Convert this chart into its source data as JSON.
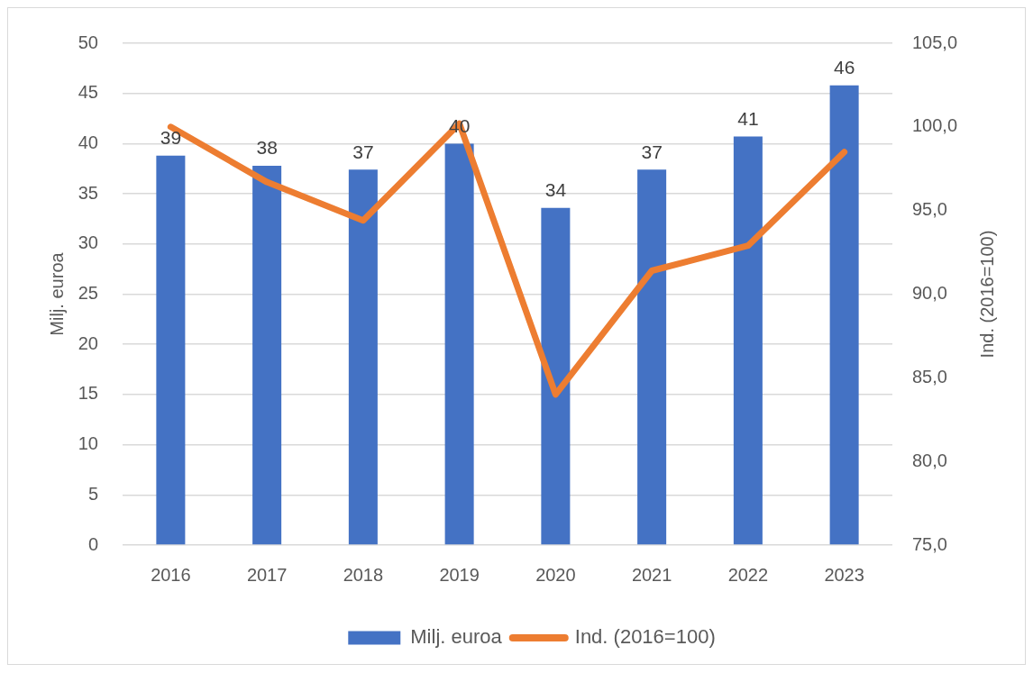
{
  "chart_data": {
    "type": "bar",
    "categories": [
      "2016",
      "2017",
      "2018",
      "2019",
      "2020",
      "2021",
      "2022",
      "2023"
    ],
    "ylabel": "Milj. euroa",
    "y2label": "Ind. (2016=100)",
    "ylim": [
      0,
      50
    ],
    "yticks": [
      0,
      5,
      10,
      15,
      20,
      25,
      30,
      35,
      40,
      45,
      50
    ],
    "y2lim": [
      75,
      105
    ],
    "y2ticks": [
      {
        "value": 75,
        "label": "75,0"
      },
      {
        "value": 80,
        "label": "80,0"
      },
      {
        "value": 85,
        "label": "85,0"
      },
      {
        "value": 90,
        "label": "90,0"
      },
      {
        "value": 95,
        "label": "95,0"
      },
      {
        "value": 100,
        "label": "100,0"
      },
      {
        "value": 105,
        "label": "105,0"
      }
    ],
    "grid": "y",
    "legend": "bottom",
    "marker": "none",
    "line_style": "solid",
    "series": [
      {
        "name": "Milj. euroa",
        "color": "#4472c4",
        "values": [
          38.8,
          37.8,
          37.4,
          40.0,
          33.6,
          37.4,
          40.7,
          45.8
        ],
        "value_labels": [
          "39",
          "38",
          "37",
          "40",
          "34",
          "37",
          "41",
          "46"
        ]
      },
      {
        "name": "Ind. (2016=100)",
        "type": "line",
        "axis": "y2",
        "color": "#ed7d31",
        "values": [
          100.0,
          96.7,
          94.4,
          100.2,
          84.0,
          91.4,
          92.9,
          98.5
        ]
      }
    ]
  }
}
